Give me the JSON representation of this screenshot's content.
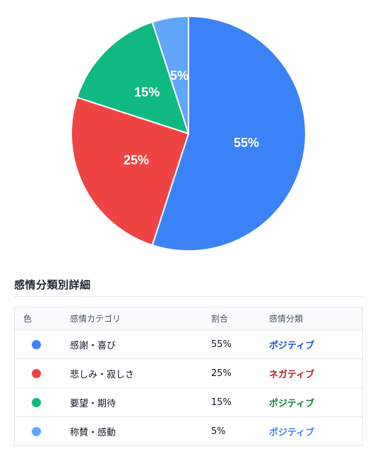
{
  "chart_data": {
    "type": "pie",
    "slices": [
      {
        "label": "感謝・喜び",
        "value": 55,
        "display": "55%",
        "color": "#3b82f6"
      },
      {
        "label": "悲しみ・寂しさ",
        "value": 25,
        "display": "25%",
        "color": "#ef4444"
      },
      {
        "label": "要望・期待",
        "value": 15,
        "display": "15%",
        "color": "#10b981"
      },
      {
        "label": "称賛・感動",
        "value": 5,
        "display": "5%",
        "color": "#60a5fa"
      }
    ]
  },
  "detail": {
    "title": "感情分類別詳細",
    "headers": {
      "color": "色",
      "category": "感情カテゴリ",
      "ratio": "割合",
      "classification": "感情分類"
    },
    "rows": [
      {
        "color": "#3b82f6",
        "category": "感謝・喜び",
        "ratio": "55%",
        "classification": "ポジティブ",
        "class_color": "#1d4ed8"
      },
      {
        "color": "#ef4444",
        "category": "悲しみ・寂しさ",
        "ratio": "25%",
        "classification": "ネガティブ",
        "class_color": "#b91c1c"
      },
      {
        "color": "#10b981",
        "category": "要望・期待",
        "ratio": "15%",
        "classification": "ポジティブ",
        "class_color": "#15803d"
      },
      {
        "color": "#60a5fa",
        "category": "称賛・感動",
        "ratio": "5%",
        "classification": "ポジティブ",
        "class_color": "#3b82f6"
      }
    ]
  }
}
